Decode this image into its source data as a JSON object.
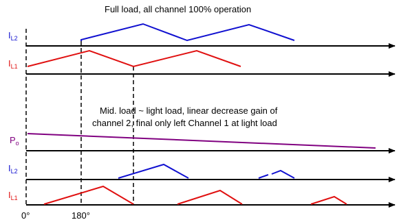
{
  "title": "Full load, all channel 100% operation",
  "mid_caption": {
    "line1": "Mid. load ~ light load, linear decrease gain of",
    "line2": "channel 2, final only left Channel 1 at light load"
  },
  "signals": {
    "il2_top": {
      "main": "I",
      "sub": "L2"
    },
    "il1_top": {
      "main": "I",
      "sub": "L1"
    },
    "po": {
      "main": "P",
      "sub": "o"
    },
    "il2_bottom": {
      "main": "I",
      "sub": "L2"
    },
    "il1_bottom": {
      "main": "I",
      "sub": "L1"
    }
  },
  "phase_labels": {
    "zero": "0°",
    "one_eighty": "180°"
  },
  "colors": {
    "il2": "#1010d0",
    "il1": "#e01010",
    "po": "#800080",
    "axis": "#000000"
  }
}
